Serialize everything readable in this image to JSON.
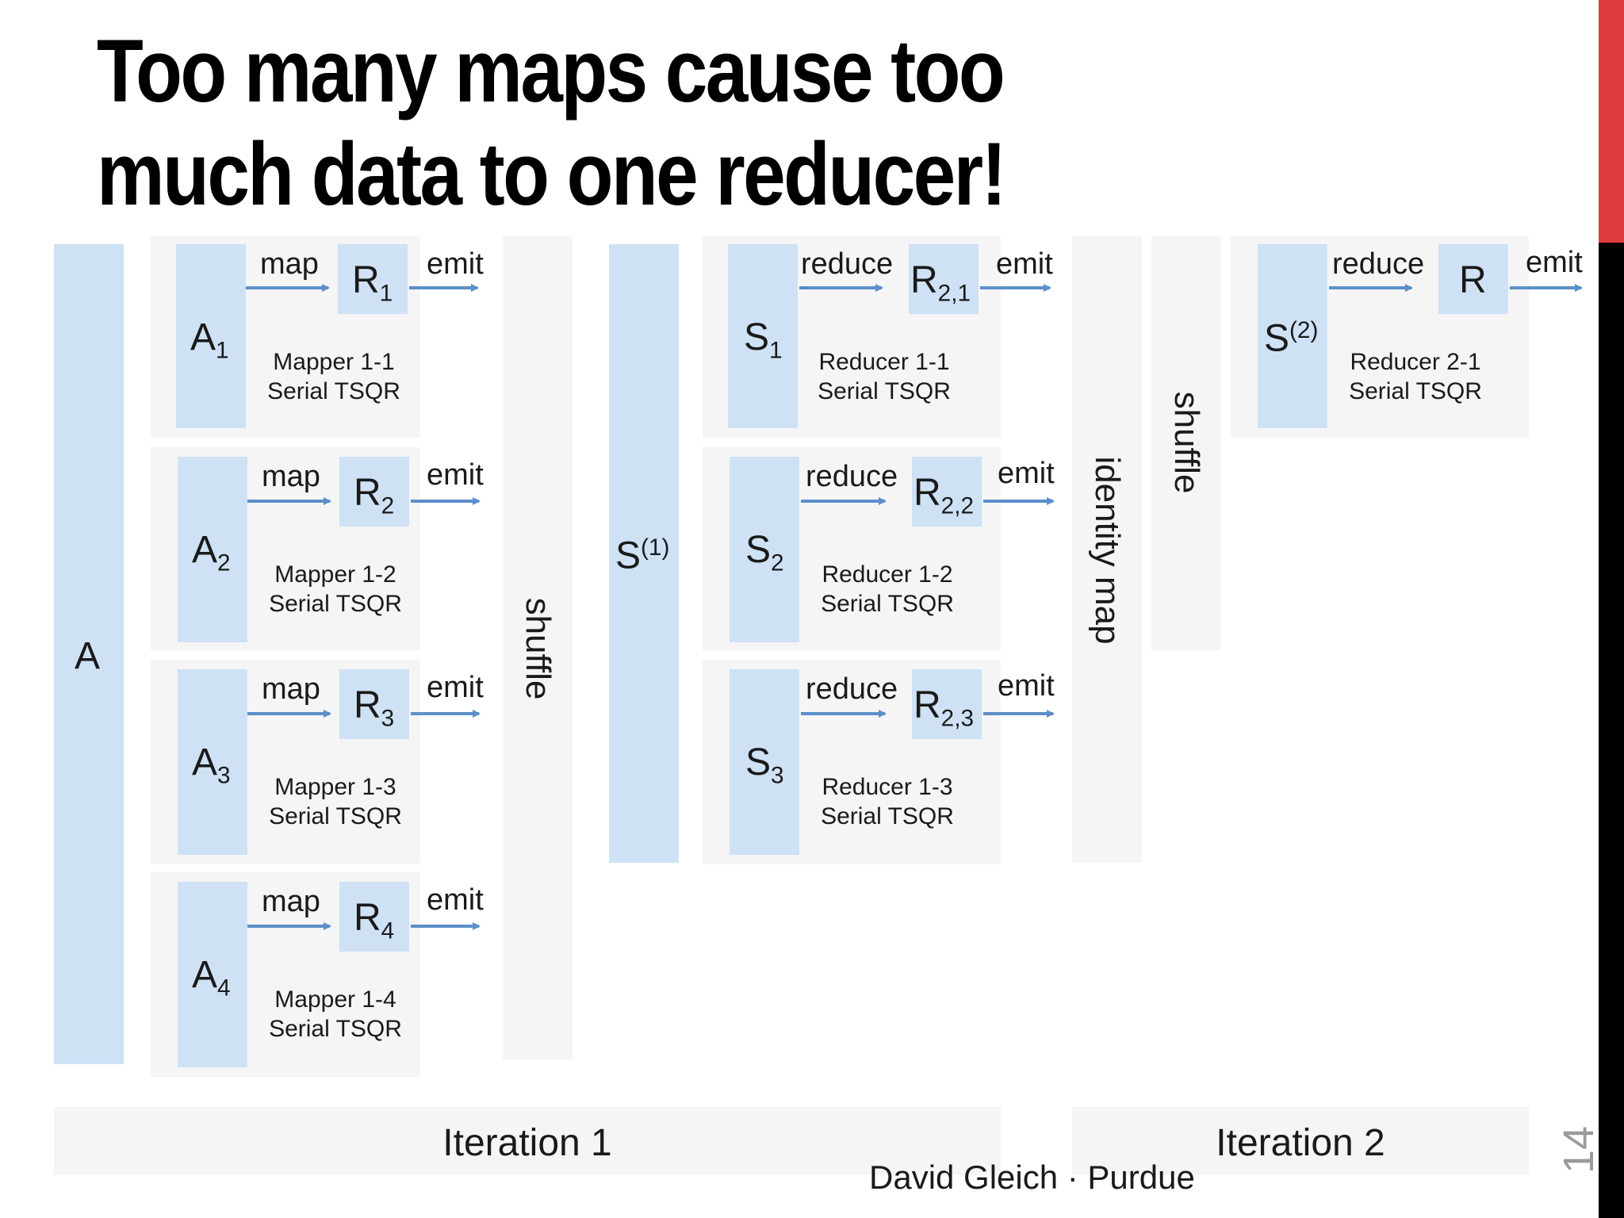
{
  "slide": {
    "title_line1": "Too many maps cause too",
    "title_line2": "much data to one reducer!",
    "page_number": "14",
    "footer": "David Gleich · Purdue"
  },
  "diagram": {
    "input": "A",
    "mappers": [
      {
        "block": "A",
        "block_sub": "1",
        "op": "map",
        "result": "R",
        "result_sub": "1",
        "out": "emit",
        "name": "Mapper 1-1",
        "method": "Serial TSQR"
      },
      {
        "block": "A",
        "block_sub": "2",
        "op": "map",
        "result": "R",
        "result_sub": "2",
        "out": "emit",
        "name": "Mapper 1-2",
        "method": "Serial TSQR"
      },
      {
        "block": "A",
        "block_sub": "3",
        "op": "map",
        "result": "R",
        "result_sub": "3",
        "out": "emit",
        "name": "Mapper 1-3",
        "method": "Serial TSQR"
      },
      {
        "block": "A",
        "block_sub": "4",
        "op": "map",
        "result": "R",
        "result_sub": "4",
        "out": "emit",
        "name": "Mapper 1-4",
        "method": "Serial TSQR"
      }
    ],
    "shuffle1": "shuffle",
    "s1": {
      "base": "S",
      "sup": "(1)"
    },
    "reducers1": [
      {
        "block": "S",
        "block_sub": "1",
        "op": "reduce",
        "result": "R",
        "result_sub": "2,1",
        "out": "emit",
        "name": "Reducer 1-1",
        "method": "Serial TSQR"
      },
      {
        "block": "S",
        "block_sub": "2",
        "op": "reduce",
        "result": "R",
        "result_sub": "2,2",
        "out": "emit",
        "name": "Reducer 1-2",
        "method": "Serial TSQR"
      },
      {
        "block": "S",
        "block_sub": "3",
        "op": "reduce",
        "result": "R",
        "result_sub": "2,3",
        "out": "emit",
        "name": "Reducer 1-3",
        "method": "Serial TSQR"
      }
    ],
    "identity_map": "identity map",
    "shuffle2": "shuffle",
    "reducer2": {
      "block": "S",
      "block_sup": "(2)",
      "op": "reduce",
      "result": "R",
      "out": "emit",
      "name": "Reducer 2-1",
      "method": "Serial TSQR"
    },
    "iteration1": "Iteration 1",
    "iteration2": "Iteration 2"
  },
  "colors": {
    "block_blue": "#cfe1f5",
    "panel_gray": "#f5f5f6",
    "arrow_blue": "#5b8fc9",
    "accent_red": "#de3c3c"
  }
}
